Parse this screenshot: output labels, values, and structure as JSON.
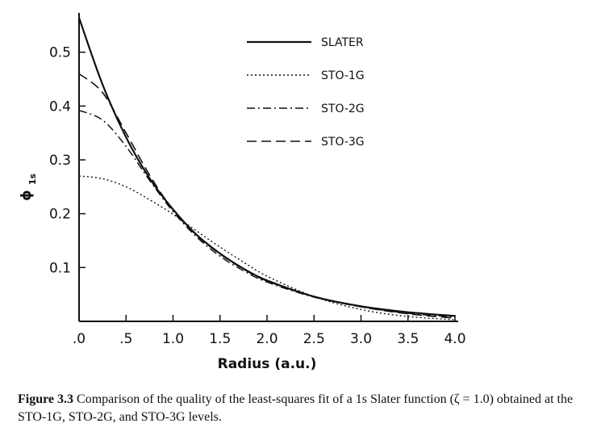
{
  "chart_data": {
    "type": "line",
    "xlabel": "Radius (a.u.)",
    "ylabel": "ϕ",
    "ylabel_subscript": "1s",
    "xlim": [
      0,
      4.0
    ],
    "ylim": [
      0,
      0.57
    ],
    "x_ticks": [
      0,
      0.5,
      1.0,
      1.5,
      2.0,
      2.5,
      3.0,
      3.5,
      4.0
    ],
    "x_tick_labels": [
      ".0",
      ".5",
      "1.0",
      "1.5",
      "2.0",
      "2.5",
      "3.0",
      "3.5",
      "4.0"
    ],
    "y_ticks": [
      0.1,
      0.2,
      0.3,
      0.4,
      0.5
    ],
    "y_tick_labels": [
      "0.1",
      "0.2",
      "0.3",
      "0.4",
      "0.5"
    ],
    "grid": false,
    "legend_position": "top-right",
    "series": [
      {
        "name": "SLATER",
        "style": "solid",
        "x": [
          0,
          0.25,
          0.5,
          0.75,
          1.0,
          1.25,
          1.5,
          1.75,
          2.0,
          2.5,
          3.0,
          3.5,
          4.0
        ],
        "values": [
          0.564,
          0.44,
          0.342,
          0.266,
          0.208,
          0.161,
          0.126,
          0.098,
          0.076,
          0.046,
          0.028,
          0.017,
          0.01
        ]
      },
      {
        "name": "STO-1G",
        "style": "dotted",
        "x": [
          0,
          0.25,
          0.5,
          0.75,
          1.0,
          1.25,
          1.5,
          1.75,
          2.0,
          2.5,
          3.0,
          3.5,
          4.0
        ],
        "values": [
          0.27,
          0.265,
          0.25,
          0.226,
          0.199,
          0.168,
          0.138,
          0.11,
          0.084,
          0.046,
          0.022,
          0.009,
          0.003
        ]
      },
      {
        "name": "STO-2G",
        "style": "dashdot",
        "x": [
          0,
          0.25,
          0.5,
          0.75,
          1.0,
          1.25,
          1.5,
          1.75,
          2.0,
          2.5,
          3.0,
          3.5,
          4.0
        ],
        "values": [
          0.392,
          0.374,
          0.325,
          0.262,
          0.204,
          0.157,
          0.121,
          0.094,
          0.073,
          0.045,
          0.027,
          0.015,
          0.008
        ]
      },
      {
        "name": "STO-3G",
        "style": "dashed",
        "x": [
          0,
          0.25,
          0.5,
          0.75,
          1.0,
          1.25,
          1.5,
          1.75,
          2.0,
          2.5,
          3.0,
          3.5,
          4.0
        ],
        "values": [
          0.46,
          0.425,
          0.35,
          0.272,
          0.207,
          0.16,
          0.125,
          0.097,
          0.075,
          0.046,
          0.027,
          0.014,
          0.006
        ]
      }
    ]
  },
  "caption": {
    "label": "Figure 3.3",
    "text": " Comparison of the quality of the least-squares fit of a 1s Slater function (ζ = 1.0) obtained at the STO-1G, STO-2G, and STO-3G levels."
  }
}
